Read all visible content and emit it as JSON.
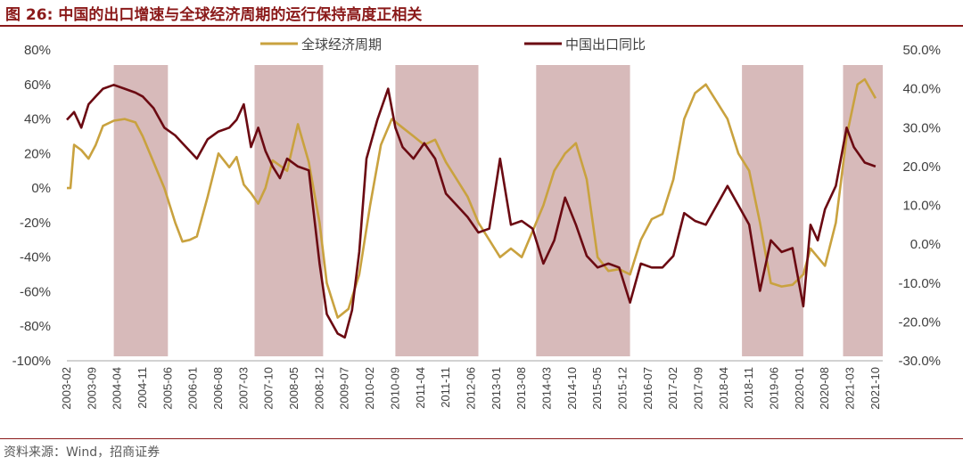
{
  "figure": {
    "number": "图 26:",
    "title": "中国的出口增速与全球经济周期的运行保持高度正相关",
    "source": "资料来源：Wind，招商证券"
  },
  "colors": {
    "global_cycle": "#c9a23f",
    "china_export": "#6b0a12",
    "shade": "#c9a3a3",
    "title": "#8b1a1a"
  },
  "chart_data": {
    "type": "line",
    "title": "",
    "grid": false,
    "legend_position": "top",
    "x_tick_labels": [
      "2003-02",
      "2003-09",
      "2004-04",
      "2004-11",
      "2005-06",
      "2006-01",
      "2006-08",
      "2007-03",
      "2007-10",
      "2008-05",
      "2008-12",
      "2009-07",
      "2010-02",
      "2010-09",
      "2011-04",
      "2011-11",
      "2012-06",
      "2013-01",
      "2013-08",
      "2014-03",
      "2014-10",
      "2015-05",
      "2015-12",
      "2016-07",
      "2017-02",
      "2017-09",
      "2018-04",
      "2018-11",
      "2019-06",
      "2020-01",
      "2020-08",
      "2021-03",
      "2021-10"
    ],
    "left_axis": {
      "min": -100,
      "max": 80,
      "step": 20,
      "unit": "%",
      "ticks": [
        "80%",
        "60%",
        "40%",
        "20%",
        "0%",
        "-20%",
        "-40%",
        "-60%",
        "-80%",
        "-100%"
      ]
    },
    "right_axis": {
      "min": -30,
      "max": 50,
      "step": 10,
      "unit": "%",
      "ticks": [
        "50.0%",
        "40.0%",
        "30.0%",
        "20.0%",
        "10.0%",
        "0.0%",
        "-10.0%",
        "-20.0%",
        "-30.0%"
      ]
    },
    "shaded_periods": [
      [
        "2004-03",
        "2005-06"
      ],
      [
        "2007-06",
        "2009-01"
      ],
      [
        "2010-09",
        "2012-08"
      ],
      [
        "2013-12",
        "2016-02"
      ],
      [
        "2018-09",
        "2020-02"
      ],
      [
        "2021-01",
        "2021-12"
      ]
    ],
    "series": [
      {
        "name": "全球经济周期",
        "axis": "left",
        "points": [
          [
            "2003-02",
            0
          ],
          [
            "2003-03",
            0
          ],
          [
            "2003-04",
            25
          ],
          [
            "2003-06",
            22
          ],
          [
            "2003-08",
            17
          ],
          [
            "2003-10",
            25
          ],
          [
            "2003-12",
            36
          ],
          [
            "2004-03",
            39
          ],
          [
            "2004-06",
            40
          ],
          [
            "2004-09",
            38
          ],
          [
            "2004-11",
            30
          ],
          [
            "2005-02",
            15
          ],
          [
            "2005-05",
            0
          ],
          [
            "2005-08",
            -20
          ],
          [
            "2005-10",
            -31
          ],
          [
            "2005-12",
            -30
          ],
          [
            "2006-02",
            -28
          ],
          [
            "2006-05",
            -5
          ],
          [
            "2006-08",
            20
          ],
          [
            "2006-11",
            12
          ],
          [
            "2007-01",
            18
          ],
          [
            "2007-03",
            2
          ],
          [
            "2007-05",
            -3
          ],
          [
            "2007-07",
            -9
          ],
          [
            "2007-09",
            0
          ],
          [
            "2007-11",
            16
          ],
          [
            "2008-01",
            13
          ],
          [
            "2008-03",
            10
          ],
          [
            "2008-06",
            37
          ],
          [
            "2008-09",
            15
          ],
          [
            "2008-12",
            -20
          ],
          [
            "2009-02",
            -55
          ],
          [
            "2009-05",
            -75
          ],
          [
            "2009-08",
            -70
          ],
          [
            "2009-11",
            -50
          ],
          [
            "2010-02",
            -10
          ],
          [
            "2010-05",
            25
          ],
          [
            "2010-08",
            40
          ],
          [
            "2010-11",
            35
          ],
          [
            "2011-02",
            30
          ],
          [
            "2011-05",
            25
          ],
          [
            "2011-08",
            28
          ],
          [
            "2011-11",
            15
          ],
          [
            "2012-02",
            5
          ],
          [
            "2012-05",
            -5
          ],
          [
            "2012-08",
            -20
          ],
          [
            "2012-11",
            -30
          ],
          [
            "2013-02",
            -40
          ],
          [
            "2013-05",
            -35
          ],
          [
            "2013-08",
            -40
          ],
          [
            "2013-11",
            -25
          ],
          [
            "2014-02",
            -10
          ],
          [
            "2014-05",
            10
          ],
          [
            "2014-08",
            20
          ],
          [
            "2014-11",
            26
          ],
          [
            "2015-02",
            5
          ],
          [
            "2015-05",
            -40
          ],
          [
            "2015-08",
            -48
          ],
          [
            "2015-11",
            -47
          ],
          [
            "2016-02",
            -50
          ],
          [
            "2016-05",
            -30
          ],
          [
            "2016-08",
            -18
          ],
          [
            "2016-11",
            -15
          ],
          [
            "2017-02",
            5
          ],
          [
            "2017-05",
            40
          ],
          [
            "2017-08",
            55
          ],
          [
            "2017-11",
            60
          ],
          [
            "2018-02",
            50
          ],
          [
            "2018-05",
            40
          ],
          [
            "2018-08",
            20
          ],
          [
            "2018-11",
            10
          ],
          [
            "2019-02",
            -20
          ],
          [
            "2019-05",
            -55
          ],
          [
            "2019-08",
            -57
          ],
          [
            "2019-11",
            -56
          ],
          [
            "2020-02",
            -50
          ],
          [
            "2020-04",
            -35
          ],
          [
            "2020-06",
            -40
          ],
          [
            "2020-08",
            -45
          ],
          [
            "2020-11",
            -20
          ],
          [
            "2021-02",
            30
          ],
          [
            "2021-05",
            60
          ],
          [
            "2021-07",
            63
          ],
          [
            "2021-10",
            52
          ]
        ]
      },
      {
        "name": "中国出口同比",
        "axis": "right",
        "points": [
          [
            "2003-02",
            32
          ],
          [
            "2003-04",
            34
          ],
          [
            "2003-06",
            30
          ],
          [
            "2003-08",
            36
          ],
          [
            "2003-10",
            38
          ],
          [
            "2003-12",
            40
          ],
          [
            "2004-03",
            41
          ],
          [
            "2004-06",
            40
          ],
          [
            "2004-09",
            39
          ],
          [
            "2004-11",
            38
          ],
          [
            "2005-02",
            35
          ],
          [
            "2005-05",
            30
          ],
          [
            "2005-08",
            28
          ],
          [
            "2005-10",
            26
          ],
          [
            "2005-12",
            24
          ],
          [
            "2006-02",
            22
          ],
          [
            "2006-05",
            27
          ],
          [
            "2006-08",
            29
          ],
          [
            "2006-11",
            30
          ],
          [
            "2007-01",
            32
          ],
          [
            "2007-03",
            36
          ],
          [
            "2007-05",
            25
          ],
          [
            "2007-07",
            30
          ],
          [
            "2007-09",
            24
          ],
          [
            "2007-11",
            20
          ],
          [
            "2008-01",
            17
          ],
          [
            "2008-03",
            22
          ],
          [
            "2008-06",
            20
          ],
          [
            "2008-09",
            19
          ],
          [
            "2008-12",
            -5
          ],
          [
            "2009-02",
            -18
          ],
          [
            "2009-05",
            -23
          ],
          [
            "2009-07",
            -24
          ],
          [
            "2009-09",
            -17
          ],
          [
            "2009-11",
            -2
          ],
          [
            "2010-01",
            22
          ],
          [
            "2010-04",
            32
          ],
          [
            "2010-07",
            40
          ],
          [
            "2010-09",
            30
          ],
          [
            "2010-11",
            25
          ],
          [
            "2011-02",
            22
          ],
          [
            "2011-05",
            26
          ],
          [
            "2011-08",
            22
          ],
          [
            "2011-11",
            13
          ],
          [
            "2012-02",
            10
          ],
          [
            "2012-05",
            7
          ],
          [
            "2012-08",
            3
          ],
          [
            "2012-11",
            4
          ],
          [
            "2013-02",
            22
          ],
          [
            "2013-05",
            5
          ],
          [
            "2013-08",
            6
          ],
          [
            "2013-11",
            4
          ],
          [
            "2014-02",
            -5
          ],
          [
            "2014-05",
            1
          ],
          [
            "2014-08",
            12
          ],
          [
            "2014-11",
            5
          ],
          [
            "2015-02",
            -3
          ],
          [
            "2015-05",
            -6
          ],
          [
            "2015-08",
            -5
          ],
          [
            "2015-11",
            -6
          ],
          [
            "2016-02",
            -15
          ],
          [
            "2016-05",
            -5
          ],
          [
            "2016-08",
            -6
          ],
          [
            "2016-11",
            -6
          ],
          [
            "2017-02",
            -3
          ],
          [
            "2017-05",
            8
          ],
          [
            "2017-08",
            6
          ],
          [
            "2017-11",
            5
          ],
          [
            "2018-02",
            10
          ],
          [
            "2018-05",
            15
          ],
          [
            "2018-08",
            10
          ],
          [
            "2018-11",
            5
          ],
          [
            "2019-02",
            -12
          ],
          [
            "2019-05",
            1
          ],
          [
            "2019-08",
            -2
          ],
          [
            "2019-11",
            -1
          ],
          [
            "2020-02",
            -16
          ],
          [
            "2020-04",
            5
          ],
          [
            "2020-06",
            1
          ],
          [
            "2020-08",
            9
          ],
          [
            "2020-11",
            15
          ],
          [
            "2021-02",
            30
          ],
          [
            "2021-04",
            25
          ],
          [
            "2021-07",
            21
          ],
          [
            "2021-10",
            20
          ]
        ]
      }
    ]
  }
}
